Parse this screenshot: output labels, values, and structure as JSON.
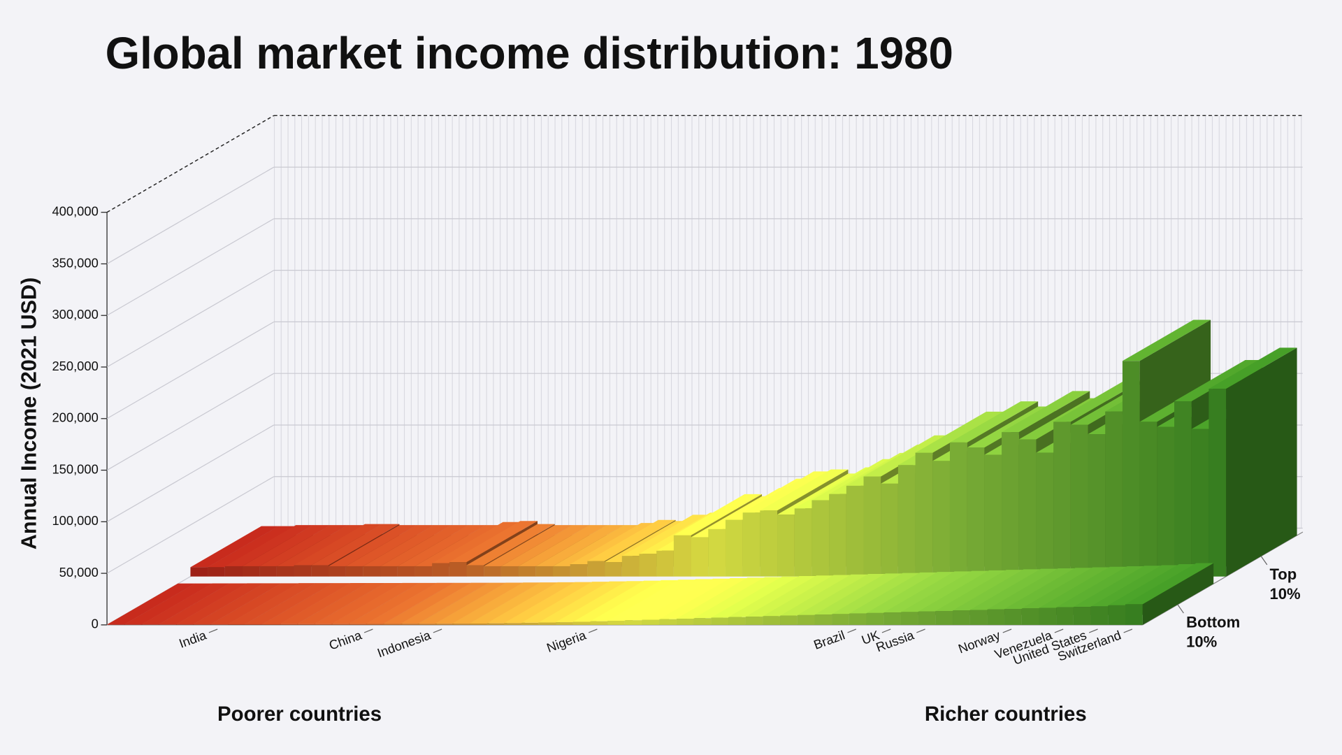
{
  "chart_data": {
    "type": "bar3d",
    "title": "Global market income distribution: 1980",
    "y_label": "Annual Income (2021 USD)",
    "x_left_label": "Poorer countries",
    "x_right_label": "Richer countries",
    "categories": [
      null,
      null,
      null,
      null,
      null,
      null,
      "India",
      null,
      null,
      null,
      null,
      null,
      null,
      null,
      null,
      "China",
      null,
      null,
      null,
      "Indonesia",
      null,
      null,
      null,
      null,
      null,
      null,
      null,
      null,
      "Nigeria",
      null,
      null,
      null,
      null,
      null,
      null,
      null,
      null,
      null,
      null,
      null,
      null,
      null,
      null,
      "Brazil",
      null,
      "UK",
      null,
      "Russia",
      null,
      null,
      null,
      null,
      "Norway",
      null,
      null,
      "Venezuela",
      null,
      "United States",
      null,
      "Switzerland"
    ],
    "series": [
      {
        "name": "Top 10%",
        "values": [
          9000,
          9000,
          10000,
          10000,
          10000,
          10000,
          11000,
          11000,
          10000,
          10000,
          10000,
          10000,
          10000,
          10000,
          13000,
          14000,
          11000,
          10000,
          10000,
          10000,
          10000,
          10000,
          12000,
          15000,
          14000,
          20000,
          22000,
          25000,
          40000,
          38000,
          46000,
          55000,
          62000,
          64000,
          60000,
          66000,
          74000,
          80000,
          88000,
          97000,
          90000,
          108000,
          120000,
          112000,
          130000,
          125000,
          118000,
          140000,
          133000,
          120000,
          150000,
          147000,
          138000,
          160000,
          209000,
          150000,
          145000,
          170000,
          143000,
          182000
        ]
      },
      {
        "name": "Bottom 10%",
        "values": [
          300,
          300,
          400,
          400,
          500,
          500,
          500,
          600,
          600,
          600,
          700,
          700,
          700,
          800,
          800,
          900,
          900,
          1000,
          1000,
          1100,
          1200,
          1300,
          1500,
          1700,
          2000,
          2300,
          2600,
          3000,
          3500,
          4000,
          4500,
          5000,
          5500,
          6000,
          6500,
          7000,
          7500,
          8000,
          8500,
          9000,
          9500,
          10000,
          10500,
          11000,
          11500,
          12000,
          12500,
          13000,
          13500,
          14000,
          14500,
          15000,
          15500,
          16000,
          16500,
          17000,
          17500,
          18000,
          19000,
          20000
        ]
      }
    ],
    "colors": [
      "#b3261a",
      "#d2662a",
      "#f2f74a",
      "#88c23c",
      "#3f8f24"
    ],
    "ylim": [
      0,
      400000
    ],
    "yticks": [
      0,
      {
        "value": 50000,
        "label": "50,000"
      },
      {
        "value": 100000,
        "label": "100,000"
      },
      {
        "value": 150000,
        "label": "150,000"
      },
      {
        "value": 200000,
        "label": "200,000"
      },
      {
        "value": 250000,
        "label": "250,000"
      },
      {
        "value": 300000,
        "label": "300,000"
      },
      {
        "value": 350000,
        "label": "350,000"
      },
      {
        "value": 400000,
        "label": "400,000"
      }
    ],
    "grid": true
  }
}
